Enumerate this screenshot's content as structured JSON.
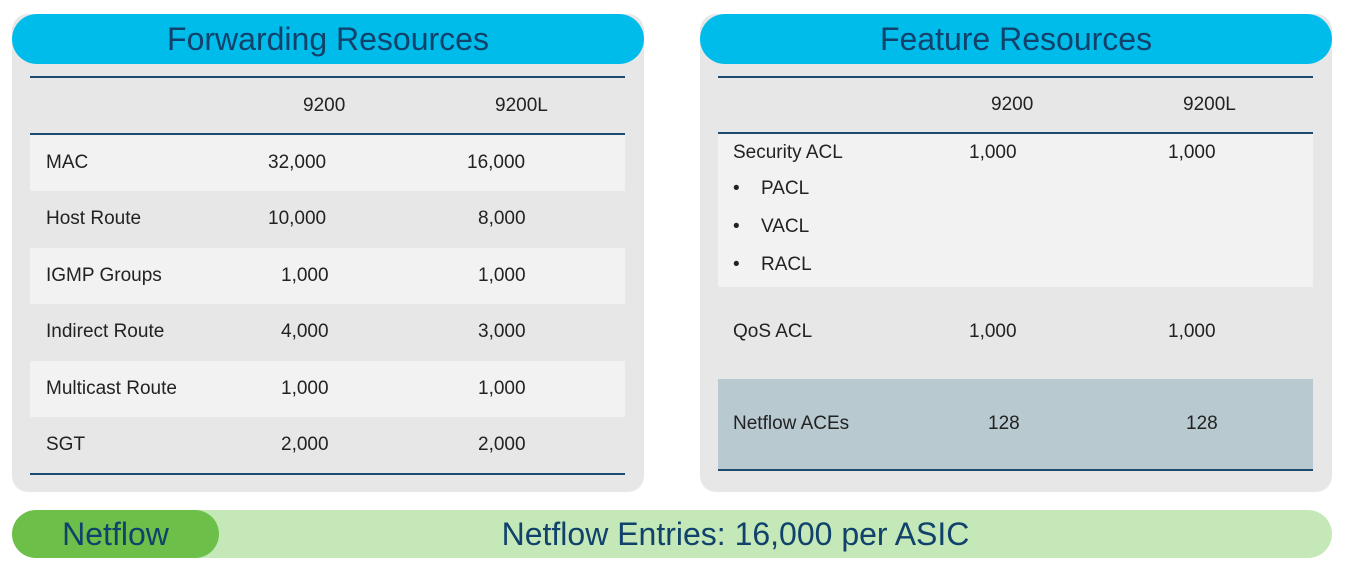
{
  "forwarding": {
    "title": "Forwarding Resources",
    "columns": [
      "",
      "9200",
      "9200L"
    ],
    "rows": [
      {
        "label": "MAC",
        "v9200": "32,000",
        "v9200l": "16,000"
      },
      {
        "label": "Host Route",
        "v9200": "10,000",
        "v9200l": "8,000"
      },
      {
        "label": "IGMP Groups",
        "v9200": "1,000",
        "v9200l": "1,000"
      },
      {
        "label": "Indirect Route",
        "v9200": "4,000",
        "v9200l": "3,000"
      },
      {
        "label": "Multicast Route",
        "v9200": "1,000",
        "v9200l": "1,000"
      },
      {
        "label": "SGT",
        "v9200": "2,000",
        "v9200l": "2,000"
      }
    ]
  },
  "feature": {
    "title": "Feature Resources",
    "columns": [
      "",
      "9200",
      "9200L"
    ],
    "rows": [
      {
        "label": "Security ACL",
        "sub_items": [
          "PACL",
          "VACL",
          "RACL"
        ],
        "v9200": "1,000",
        "v9200l": "1,000"
      },
      {
        "label": "QoS ACL",
        "v9200": "1,000",
        "v9200l": "1,000"
      },
      {
        "label": "Netflow ACEs",
        "v9200": "128",
        "v9200l": "128"
      }
    ]
  },
  "netflow": {
    "label": "Netflow",
    "text": "Netflow Entries: 16,000 per ASIC"
  },
  "colors": {
    "header_blue": "#00bceb",
    "panel_gray": "#e7e7e8",
    "row_light": "#f2f2f2",
    "highlight_row": "#b9c9d0",
    "rule_navy": "#1d4a6f",
    "netflow_green": "#6cc04a",
    "netflow_bar": "#c4e8b8"
  }
}
